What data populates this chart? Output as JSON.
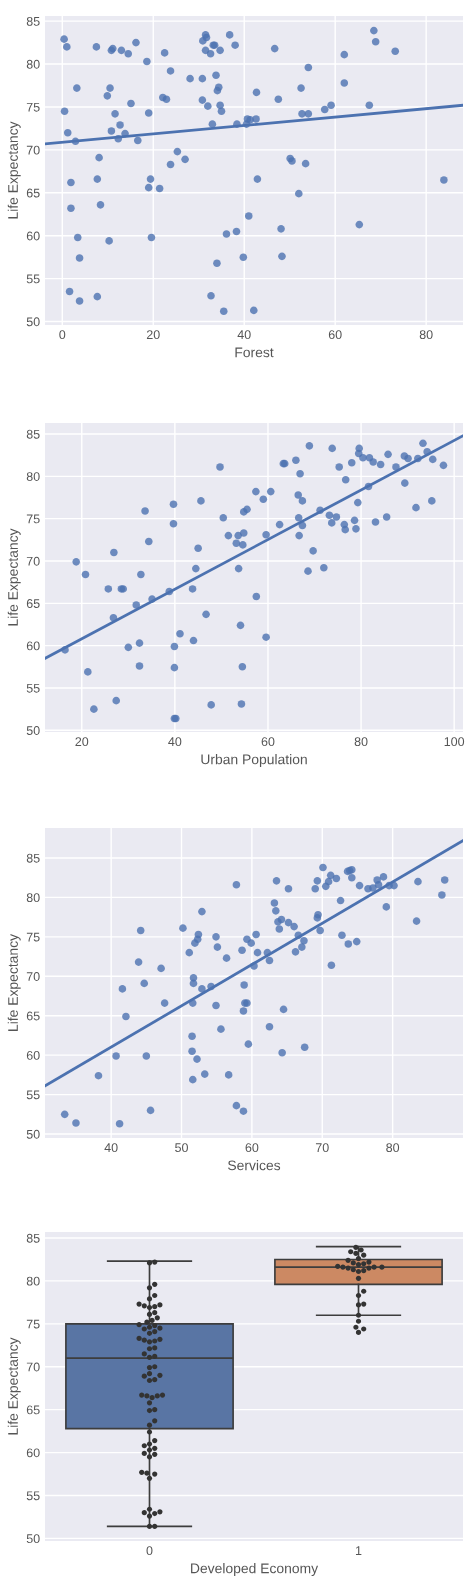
{
  "chart_data": [
    {
      "type": "scatter",
      "xlabel": "Forest",
      "ylabel": "Life Expectancy",
      "xlim": [
        -3.8,
        88.1
      ],
      "ylim": [
        49.6,
        85.6
      ],
      "xticks": [
        0,
        20,
        40,
        60,
        80
      ],
      "yticks": [
        50,
        55,
        60,
        65,
        70,
        75,
        80,
        85
      ],
      "grid": true,
      "marker": "circle",
      "series": [
        {
          "type": "scatter",
          "color": "#4c72b0",
          "x": [
            0.4,
            1.0,
            0.5,
            1.2,
            2.9,
            3.2,
            1.9,
            1.9,
            3.4,
            3.8,
            1.6,
            3.8,
            7.5,
            7.7,
            8.1,
            8.4,
            7.7,
            10.3,
            9.9,
            10.5,
            10.8,
            11.1,
            13.0,
            14.5,
            16.2,
            10.8,
            11.6,
            12.7,
            12.3,
            13.8,
            15.1,
            16.6,
            18.6,
            19.0,
            19.4,
            19.0,
            19.6,
            21.4,
            22.5,
            22.1,
            22.9,
            23.8,
            23.8,
            25.3,
            27.0,
            28.1,
            30.8,
            30.8,
            32.0,
            30.9,
            31.5,
            31.7,
            31.5,
            32.6,
            33.2,
            33.5,
            34.7,
            33.8,
            34.4,
            34.1,
            34.7,
            35.0,
            33.0,
            36.8,
            38.0,
            38.4,
            36.1,
            38.3,
            34.0,
            32.7,
            35.5,
            39.8,
            41.0,
            40.7,
            40.5,
            41.3,
            42.6,
            42.7,
            42.9,
            42.1,
            46.7,
            47.5,
            48.1,
            48.3,
            50.1,
            50.5,
            52.0,
            52.5,
            52.7,
            53.5,
            54.1,
            54.1,
            57.7,
            59.1,
            62.0,
            62.0,
            65.3,
            67.5,
            68.5,
            68.9,
            73.2,
            83.9
          ],
          "values": [
            82.9,
            82.0,
            74.5,
            72.0,
            71.0,
            77.2,
            66.2,
            63.2,
            59.8,
            57.4,
            53.5,
            52.4,
            82.0,
            66.6,
            69.1,
            63.6,
            52.9,
            59.4,
            76.3,
            77.2,
            81.6,
            81.8,
            81.6,
            81.2,
            82.5,
            72.2,
            74.2,
            72.9,
            71.3,
            71.9,
            75.4,
            71.1,
            80.3,
            74.3,
            66.6,
            65.6,
            59.8,
            65.5,
            81.3,
            76.1,
            75.9,
            79.2,
            68.3,
            69.8,
            68.9,
            78.3,
            78.3,
            75.8,
            75.1,
            82.7,
            83.4,
            83.1,
            81.6,
            81.2,
            82.2,
            82.2,
            81.6,
            78.7,
            77.3,
            76.9,
            75.2,
            74.5,
            73.0,
            83.4,
            82.2,
            73.0,
            60.2,
            60.5,
            56.8,
            53.0,
            51.2,
            57.5,
            62.3,
            73.6,
            73.0,
            73.5,
            73.6,
            76.7,
            66.6,
            51.3,
            81.8,
            75.9,
            60.8,
            57.6,
            69.0,
            68.7,
            64.9,
            77.2,
            74.2,
            68.4,
            79.6,
            74.2,
            74.7,
            75.2,
            81.1,
            77.8,
            61.3,
            75.2,
            83.9,
            82.6,
            81.5,
            66.5
          ]
        },
        {
          "type": "line",
          "color": "#4c72b0",
          "marker": "none",
          "x": [
            -3.8,
            88.1
          ],
          "values": [
            70.7,
            75.2
          ]
        }
      ]
    },
    {
      "type": "scatter",
      "xlabel": "Urban Population",
      "ylabel": "Life Expectancy",
      "xlim": [
        12.1,
        101.9
      ],
      "ylim": [
        49.8,
        86.3
      ],
      "xticks": [
        20,
        40,
        60,
        80,
        100
      ],
      "yticks": [
        50,
        55,
        60,
        65,
        70,
        75,
        80,
        85
      ],
      "grid": true,
      "marker": "circle",
      "series": [
        {
          "type": "scatter",
          "color": "#4c72b0",
          "x": [
            16.4,
            18.8,
            20.8,
            21.3,
            22.6,
            25.7,
            26.9,
            26.8,
            27.4,
            28.5,
            28.9,
            30.0,
            31.7,
            32.4,
            32.4,
            32.7,
            33.6,
            34.4,
            35.1,
            38.8,
            39.7,
            39.7,
            39.9,
            39.9,
            39.9,
            40.2,
            41.1,
            43.8,
            44.0,
            44.5,
            45.0,
            45.6,
            46.7,
            47.8,
            49.7,
            50.4,
            51.5,
            53.2,
            53.6,
            53.7,
            54.8,
            54.6,
            54.1,
            54.5,
            54.3,
            54.8,
            55.5,
            57.4,
            57.5,
            59.0,
            59.6,
            59.6,
            60.6,
            62.5,
            63.3,
            63.6,
            66.0,
            66.5,
            66.6,
            66.7,
            66.9,
            67.4,
            67.4,
            68.9,
            68.6,
            69.7,
            71.2,
            72.0,
            73.2,
            73.7,
            73.8,
            74.7,
            75.3,
            76.4,
            76.6,
            76.7,
            78.0,
            78.6,
            78.9,
            79.3,
            79.6,
            79.5,
            80.4,
            81.6,
            81.8,
            82.6,
            83.1,
            84.2,
            85.5,
            85.8,
            87.5,
            89.3,
            89.4,
            90.1,
            91.8,
            92.2,
            93.3,
            94.2,
            95.2,
            95.4,
            97.7
          ],
          "values": [
            59.5,
            69.9,
            68.4,
            56.9,
            52.5,
            66.7,
            71.0,
            63.3,
            53.5,
            66.7,
            66.7,
            59.8,
            64.8,
            60.3,
            57.6,
            68.4,
            75.9,
            72.3,
            65.5,
            66.4,
            76.7,
            74.4,
            59.9,
            57.4,
            51.4,
            51.4,
            61.4,
            66.7,
            60.6,
            69.1,
            71.5,
            77.1,
            63.7,
            53.0,
            81.1,
            75.1,
            73.0,
            72.1,
            73.0,
            69.1,
            73.3,
            71.9,
            62.4,
            57.5,
            53.1,
            75.8,
            76.1,
            78.2,
            65.8,
            77.3,
            73.1,
            61.0,
            78.2,
            74.3,
            81.5,
            81.5,
            81.9,
            77.8,
            75.1,
            73.0,
            80.3,
            77.1,
            74.2,
            83.6,
            68.8,
            71.2,
            76.0,
            69.2,
            75.4,
            74.5,
            83.3,
            75.2,
            81.1,
            74.3,
            73.7,
            79.6,
            81.6,
            74.8,
            73.8,
            76.9,
            83.3,
            82.7,
            82.2,
            78.8,
            82.2,
            81.7,
            74.6,
            81.4,
            75.2,
            82.6,
            81.1,
            82.4,
            79.2,
            82.1,
            76.3,
            82.1,
            83.9,
            82.9,
            77.1,
            82.0,
            81.3
          ]
        },
        {
          "type": "line",
          "color": "#4c72b0",
          "marker": "none",
          "x": [
            12.1,
            101.9
          ],
          "values": [
            58.5,
            84.8
          ]
        }
      ]
    },
    {
      "type": "scatter",
      "xlabel": "Services",
      "ylabel": "Life Expectancy",
      "xlim": [
        30.6,
        90.0
      ],
      "ylim": [
        49.5,
        88.8
      ],
      "xticks": [
        40,
        50,
        60,
        70,
        80
      ],
      "yticks": [
        50,
        55,
        60,
        65,
        70,
        75,
        80,
        85
      ],
      "grid": true,
      "marker": "circle",
      "series": [
        {
          "type": "scatter",
          "color": "#4c72b0",
          "x": [
            33.4,
            35.0,
            38.2,
            40.7,
            41.2,
            41.6,
            42.1,
            43.9,
            44.2,
            44.7,
            45.0,
            45.6,
            47.1,
            47.6,
            50.2,
            51.1,
            51.7,
            51.7,
            51.6,
            51.5,
            51.5,
            51.6,
            52.2,
            51.9,
            52.3,
            52.4,
            52.9,
            52.9,
            53.3,
            54.2,
            54.9,
            55.1,
            54.9,
            55.6,
            56.4,
            56.7,
            57.8,
            57.8,
            58.8,
            58.6,
            58.9,
            58.8,
            59.0,
            59.3,
            59.3,
            59.9,
            59.5,
            60.3,
            60.6,
            60.8,
            62.2,
            62.5,
            62.5,
            63.2,
            63.4,
            63.5,
            63.7,
            63.9,
            64.2,
            64.3,
            64.5,
            65.2,
            65.2,
            66.0,
            66.2,
            66.6,
            67.1,
            67.4,
            67.5,
            69.0,
            69.3,
            69.4,
            69.3,
            69.7,
            70.1,
            70.5,
            70.9,
            71.2,
            71.3,
            72.0,
            72.6,
            72.8,
            73.7,
            73.6,
            73.9,
            74.2,
            74.2,
            74.9,
            75.3,
            76.5,
            77.2,
            77.8,
            78.0,
            78.7,
            79.1,
            79.5,
            80.2,
            83.4,
            83.6,
            87.0,
            87.4
          ],
          "values": [
            52.5,
            51.4,
            57.4,
            59.9,
            51.3,
            68.4,
            64.9,
            71.8,
            75.8,
            69.1,
            59.9,
            53.0,
            71.0,
            66.6,
            76.1,
            73.0,
            69.8,
            69.1,
            66.6,
            62.4,
            60.5,
            56.9,
            59.5,
            74.2,
            74.7,
            75.3,
            78.2,
            68.4,
            57.6,
            68.7,
            75.0,
            73.7,
            66.3,
            63.3,
            72.3,
            57.5,
            81.6,
            53.6,
            52.9,
            73.3,
            68.9,
            65.6,
            66.6,
            66.6,
            74.7,
            74.2,
            61.4,
            71.3,
            75.3,
            73.0,
            73.0,
            72.0,
            63.6,
            79.3,
            78.3,
            82.1,
            76.9,
            76.0,
            77.2,
            60.3,
            65.8,
            81.1,
            76.8,
            76.3,
            73.1,
            75.2,
            73.7,
            74.5,
            61.0,
            81.1,
            82.1,
            77.8,
            77.4,
            75.8,
            83.8,
            81.4,
            82.0,
            82.8,
            71.4,
            82.4,
            79.6,
            75.2,
            74.1,
            83.3,
            83.4,
            83.5,
            82.5,
            74.4,
            81.5,
            81.1,
            81.2,
            82.2,
            81.6,
            82.6,
            78.8,
            81.5,
            81.5,
            77.0,
            82.0,
            80.3,
            82.2
          ]
        },
        {
          "type": "line",
          "color": "#4c72b0",
          "marker": "none",
          "x": [
            30.6,
            90.0
          ],
          "values": [
            56.1,
            87.2
          ]
        }
      ]
    },
    {
      "type": "box",
      "xlabel": "Developed Economy",
      "ylabel": "Life Expectancy",
      "categories": [
        "0",
        "1"
      ],
      "ylim": [
        49.7,
        85.7
      ],
      "yticks": [
        50,
        55,
        60,
        65,
        70,
        75,
        80,
        85
      ],
      "grid": "y",
      "colors": [
        "#5975a4",
        "#cc8963"
      ],
      "boxes": [
        {
          "low": 51.4,
          "q1": 62.8,
          "median": 71.0,
          "q3": 75.0,
          "high": 82.3
        },
        {
          "low": 76.0,
          "q1": 79.6,
          "median": 81.6,
          "q3": 82.5,
          "high": 84.0
        }
      ],
      "series": [
        {
          "type": "scatter",
          "color": "#333333",
          "x": [
            "0",
            "0",
            "0",
            "0",
            "0",
            "0",
            "0",
            "0",
            "0",
            "0",
            "0",
            "0",
            "0",
            "0",
            "0",
            "0",
            "0",
            "0",
            "0",
            "0",
            "0",
            "0",
            "0",
            "0",
            "0",
            "0",
            "0",
            "0",
            "0",
            "0",
            "0",
            "0",
            "0",
            "0",
            "0",
            "0",
            "0",
            "0",
            "0",
            "0",
            "0",
            "0",
            "0",
            "0",
            "0",
            "0",
            "0",
            "0",
            "0",
            "0",
            "0",
            "0",
            "0",
            "0",
            "0",
            "0",
            "0",
            "0",
            "0",
            "0",
            "0",
            "0",
            "0",
            "0",
            "0",
            "0",
            "0",
            "0",
            "0",
            "0"
          ],
          "values": [
            82.2,
            82.1,
            79.6,
            79.2,
            78.3,
            77.9,
            77.3,
            77.2,
            77.1,
            77.0,
            76.9,
            76.3,
            76.1,
            75.7,
            75.4,
            75.2,
            74.9,
            74.8,
            74.6,
            74.5,
            74.4,
            74.1,
            73.9,
            73.3,
            73.2,
            73.1,
            73.0,
            72.9,
            72.2,
            72.1,
            71.5,
            71.2,
            71.1,
            69.9,
            69.2,
            69.0,
            68.9,
            68.5,
            68.4,
            66.7,
            66.7,
            66.6,
            66.6,
            66.4,
            65.8,
            65.0,
            63.7,
            63.2,
            62.4,
            61.4,
            61.0,
            60.8,
            60.5,
            60.3,
            59.9,
            59.8,
            57.7,
            57.6,
            57.5,
            57.0,
            53.4,
            53.1,
            53.0,
            52.9,
            52.6,
            51.4,
            51.4,
            59.5,
            64.9,
            70.0
          ]
        },
        {
          "type": "scatter",
          "color": "#333333",
          "x": [
            "1",
            "1",
            "1",
            "1",
            "1",
            "1",
            "1",
            "1",
            "1",
            "1",
            "1",
            "1",
            "1",
            "1",
            "1",
            "1",
            "1",
            "1",
            "1",
            "1",
            "1",
            "1",
            "1",
            "1",
            "1",
            "1",
            "1",
            "1",
            "1",
            "1"
          ],
          "values": [
            83.9,
            83.6,
            83.4,
            83.2,
            83.0,
            82.6,
            82.4,
            82.2,
            82.1,
            82.0,
            81.9,
            81.7,
            81.6,
            81.6,
            81.6,
            81.5,
            81.5,
            81.3,
            81.2,
            81.1,
            80.3,
            78.8,
            78.3,
            77.3,
            77.2,
            76.0,
            75.3,
            74.6,
            74.4,
            74.0
          ]
        }
      ]
    }
  ]
}
